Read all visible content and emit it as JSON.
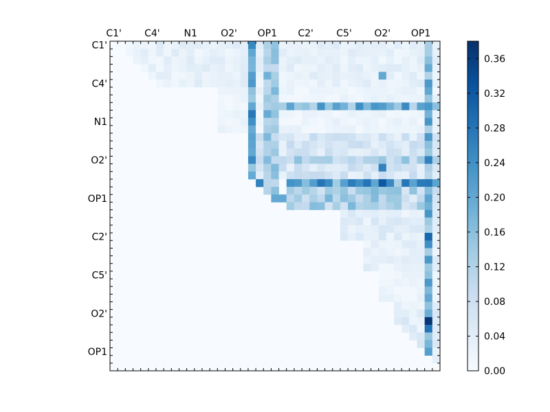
{
  "chart_data": {
    "type": "heatmap",
    "title": "",
    "xlabel": "",
    "ylabel": "",
    "x_tick_labels": [
      "C1'",
      "C4'",
      "N1",
      "O2'",
      "OP1",
      "C2'",
      "C5'",
      "O2'",
      "OP1"
    ],
    "y_tick_labels": [
      "C1'",
      "C4'",
      "N1",
      "O2'",
      "OP1",
      "C2'",
      "C5'",
      "O2'",
      "OP1"
    ],
    "n_rows": 43,
    "n_cols": 43,
    "colormap": "Blues",
    "colorbar": {
      "min": 0.0,
      "max": 0.38,
      "tick_labels": [
        "0.00",
        "0.04",
        "0.08",
        "0.12",
        "0.16",
        "0.20",
        "0.24",
        "0.28",
        "0.32",
        "0.36"
      ]
    },
    "structure": "upper-triangular",
    "regions": [
      {
        "rows": [
          0,
          6
        ],
        "cols": [
          2,
          42
        ],
        "value": 0.03
      },
      {
        "rows": [
          6,
          12
        ],
        "cols": [
          14,
          42
        ],
        "value": 0.02
      },
      {
        "rows": [
          12,
          18
        ],
        "cols": [
          18,
          42
        ],
        "value": 0.06
      },
      {
        "rows": [
          18,
          22
        ],
        "cols": [
          24,
          42
        ],
        "value": 0.1
      },
      {
        "rows": [
          22,
          26
        ],
        "cols": [
          30,
          42
        ],
        "value": 0.04
      },
      {
        "rows": [
          26,
          30
        ],
        "cols": [
          33,
          42
        ],
        "value": 0.03
      },
      {
        "rows": [
          30,
          34
        ],
        "cols": [
          35,
          42
        ],
        "value": 0.02
      },
      {
        "rows": [
          34,
          40
        ],
        "cols": [
          37,
          42
        ],
        "value": 0.04
      },
      {
        "rows": [
          40,
          43
        ],
        "cols": [
          40,
          42
        ],
        "value": 0.03
      }
    ],
    "strips": [
      {
        "rows": [
          0,
          20
        ],
        "col": 18,
        "value": 0.22
      },
      {
        "rows": [
          0,
          20
        ],
        "col": 20,
        "value": 0.16
      },
      {
        "rows": [
          0,
          20
        ],
        "col": 21,
        "value": 0.14
      },
      {
        "rows": [
          0,
          42
        ],
        "col": 41,
        "value": 0.18
      },
      {
        "rows": [
          8,
          9
        ],
        "cols": [
          22,
          42
        ],
        "value": 0.2
      },
      {
        "rows": [
          18,
          19
        ],
        "cols": [
          23,
          42
        ],
        "value": 0.22
      },
      {
        "rows": [
          19,
          22
        ],
        "cols": [
          23,
          36
        ],
        "value": 0.14
      },
      {
        "rows": [
          15,
          16
        ],
        "cols": [
          22,
          42
        ],
        "value": 0.13
      }
    ],
    "peaks": [
      {
        "row": 18,
        "col": 35,
        "value": 0.32
      },
      {
        "row": 18,
        "col": 33,
        "value": 0.28
      },
      {
        "row": 36,
        "col": 41,
        "value": 0.37
      },
      {
        "row": 25,
        "col": 41,
        "value": 0.3
      },
      {
        "row": 26,
        "col": 41,
        "value": 0.24
      },
      {
        "row": 18,
        "col": 19,
        "value": 0.26
      },
      {
        "row": 20,
        "col": 21,
        "value": 0.2
      },
      {
        "row": 20,
        "col": 22,
        "value": 0.2
      },
      {
        "row": 16,
        "col": 35,
        "value": 0.26
      },
      {
        "row": 15,
        "col": 41,
        "value": 0.26
      },
      {
        "row": 8,
        "col": 35,
        "value": 0.22
      },
      {
        "row": 4,
        "col": 35,
        "value": 0.2
      },
      {
        "row": 33,
        "col": 41,
        "value": 0.2
      },
      {
        "row": 37,
        "col": 41,
        "value": 0.28
      }
    ]
  }
}
